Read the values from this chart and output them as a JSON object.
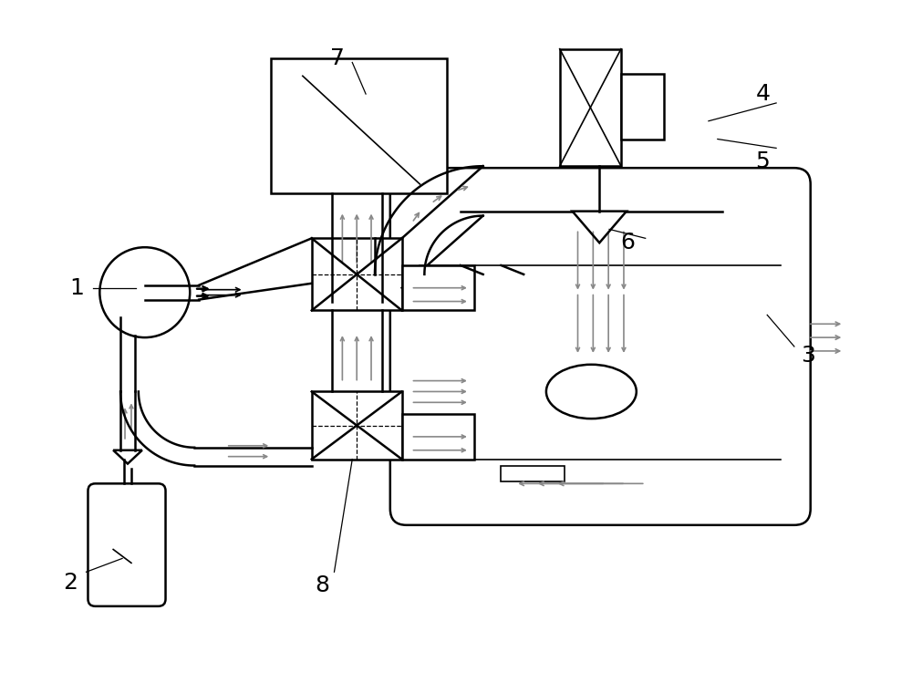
{
  "bg_color": "#ffffff",
  "line_color": "#000000",
  "flow_color": "#888888",
  "figsize": [
    10.0,
    7.6
  ],
  "dpi": 100,
  "lw_main": 1.8,
  "lw_thin": 1.2,
  "arrow_ms": 9
}
